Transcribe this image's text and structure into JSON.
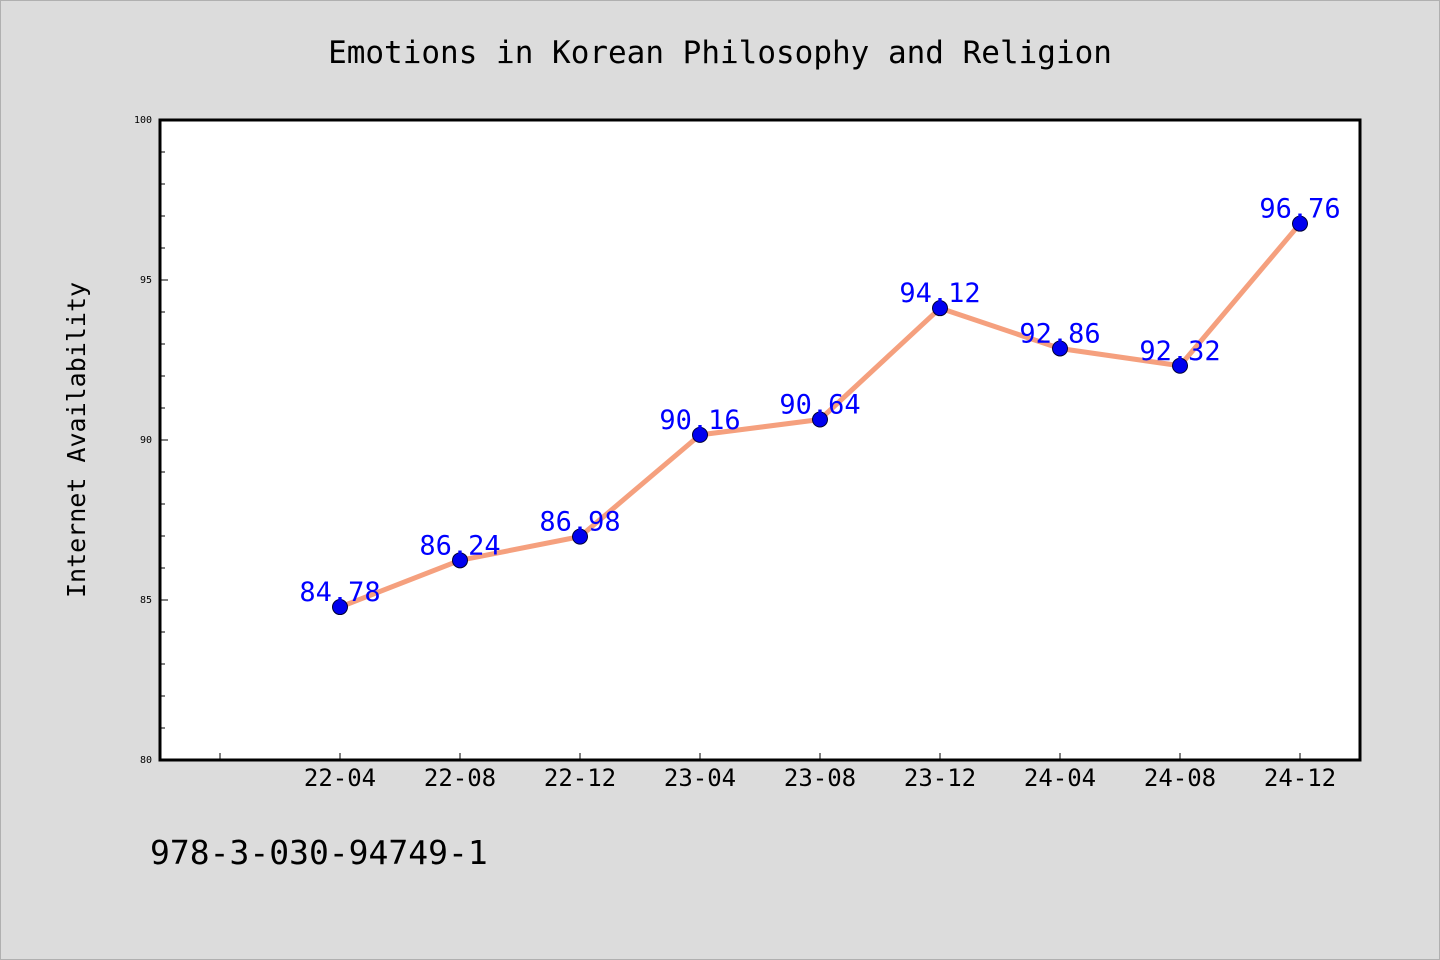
{
  "chart_data": {
    "type": "line",
    "title": "Emotions in Korean Philosophy and Religion",
    "xlabel": "",
    "ylabel": "Internet Availability",
    "categories": [
      "22-04",
      "22-08",
      "22-12",
      "23-04",
      "23-08",
      "23-12",
      "24-04",
      "24-08",
      "24-12"
    ],
    "series": [
      {
        "values": [
          84.78,
          86.24,
          86.98,
          90.16,
          90.64,
          94.12,
          92.86,
          92.32,
          96.76
        ]
      }
    ],
    "ylim": [
      80,
      100
    ],
    "yticks": [
      80,
      85,
      90,
      95,
      100
    ],
    "grid": false,
    "data_labels": true
  },
  "footer_text": "978-3-030-94749-1",
  "colors": {
    "background": "#dcdcdc",
    "plot_background": "#ffffff",
    "line": "#f5a07e",
    "marker": "#0000ee",
    "data_label": "#0000ff",
    "axis": "#000000"
  }
}
